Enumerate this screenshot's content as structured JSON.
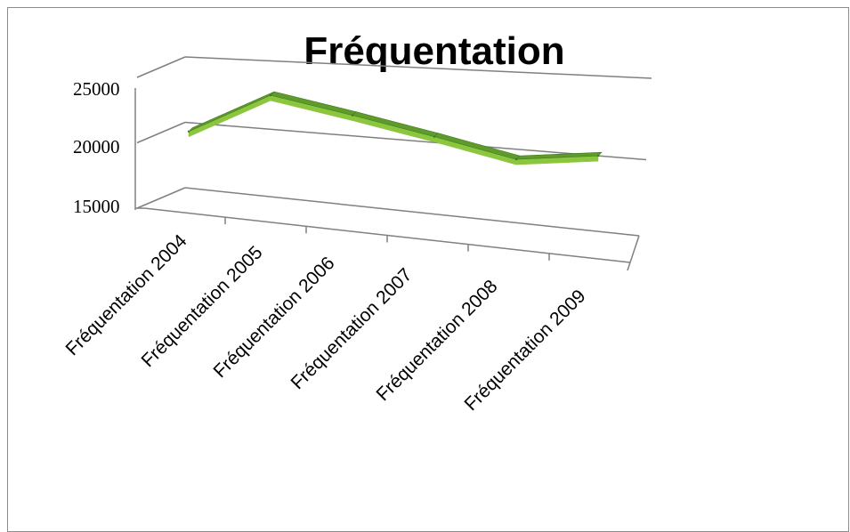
{
  "chart_data": {
    "type": "line",
    "style": "3d-ribbon",
    "title": "Fréquentation",
    "xlabel": "",
    "ylabel": "",
    "categories": [
      "Fréquentation 2004",
      "Fréquentation 2005",
      "Fréquentation 2006",
      "Fréquentation 2007",
      "Fréquentation 2008",
      "Fréquentation 2009"
    ],
    "series": [
      {
        "values": [
          19300,
          22700,
          21800,
          20800,
          19700,
          20600
        ]
      }
    ],
    "ylim": [
      15000,
      25000
    ],
    "yticks": [
      "25000",
      "20000",
      "15000"
    ],
    "grid": true,
    "legend": "none",
    "colors": {
      "ribbon_top": "#5e9b2c",
      "ribbon_front": "#8cc63f",
      "ribbon_edge": "#3f7a1c",
      "grid": "#808080"
    }
  }
}
